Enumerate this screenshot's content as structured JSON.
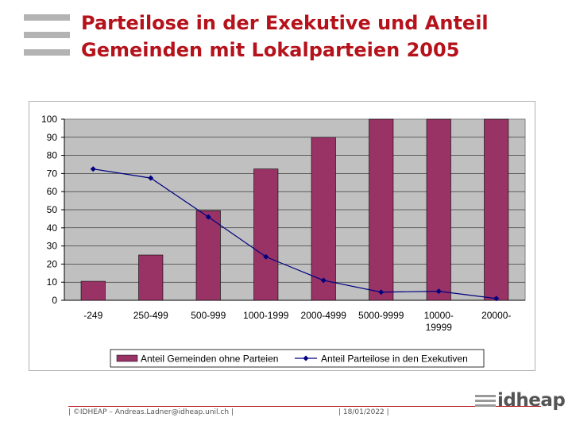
{
  "header": {
    "title_line1": "Parteilose in der Exekutive und Anteil",
    "title_line2": "Gemeinden mit Lokalparteien 2005"
  },
  "chart_data": {
    "type": "bar+line",
    "categories": [
      [
        "-249"
      ],
      [
        "250-499"
      ],
      [
        "500-999"
      ],
      [
        "1000-1999"
      ],
      [
        "2000-4999"
      ],
      [
        "5000-9999"
      ],
      [
        "10000-",
        "19999"
      ],
      [
        "20000-"
      ]
    ],
    "series": [
      {
        "name": "Anteil Gemeinden ohne Parteien",
        "kind": "bar",
        "color": "#993366",
        "values": [
          10.5,
          25,
          49.5,
          72.5,
          90,
          100,
          100,
          100
        ]
      },
      {
        "name": "Anteil Parteilose in den Exekutiven",
        "kind": "line",
        "color": "#000080",
        "values": [
          72.5,
          67.5,
          46,
          24,
          11,
          4.5,
          5,
          1
        ]
      }
    ],
    "ylim": [
      0,
      100
    ],
    "yticks": [
      0,
      10,
      20,
      30,
      40,
      50,
      60,
      70,
      80,
      90,
      100
    ],
    "plot_background": "#c0c0c0",
    "legend_position": "bottom"
  },
  "footer": {
    "left": "| ©IDHEAP – Andreas.Ladner@idheap.unil.ch |",
    "date": "| 18/01/2022 |",
    "brand": "idheap"
  }
}
